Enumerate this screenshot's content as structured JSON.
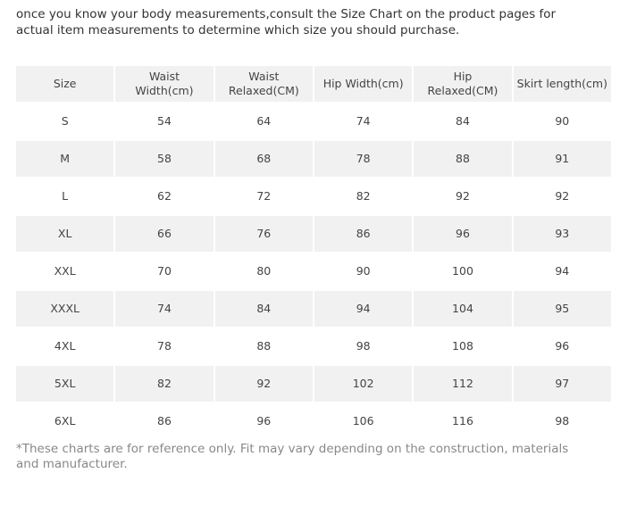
{
  "intro": "once you know your body measurements,consult the Size Chart on the product pages for actual item measurements to determine which size you should purchase.",
  "table": {
    "header": [
      "Size",
      "Waist Width(cm)",
      "Waist Relaxed(CM)",
      "Hip Width(cm)",
      "Hip Relaxed(CM)",
      "Skirt length(cm)"
    ],
    "rows": [
      [
        "S",
        54,
        64,
        74,
        84,
        90
      ],
      [
        "M",
        58,
        68,
        78,
        88,
        91
      ],
      [
        "L",
        62,
        72,
        82,
        92,
        92
      ],
      [
        "XL",
        66,
        76,
        86,
        96,
        93
      ],
      [
        "XXL",
        70,
        80,
        90,
        100,
        94
      ],
      [
        "XXXL",
        74,
        84,
        94,
        104,
        95
      ],
      [
        "4XL",
        78,
        88,
        98,
        108,
        96
      ],
      [
        "5XL",
        82,
        92,
        102,
        112,
        97
      ],
      [
        "6XL",
        86,
        96,
        106,
        116,
        98
      ]
    ]
  },
  "footnote": "*These charts are for reference only. Fit may vary depending on the construction, materials and manufacturer."
}
